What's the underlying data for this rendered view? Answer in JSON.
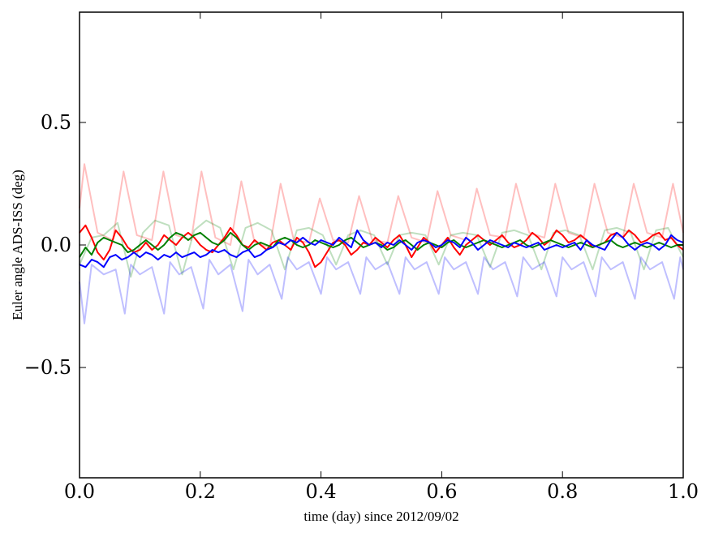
{
  "chart_data": {
    "type": "line",
    "xlabel": "time (day) since 2012/09/02",
    "ylabel": "Euler angle ADS-ISS (deg)",
    "xlim": [
      0.0,
      1.0
    ],
    "ylim": [
      -0.95,
      0.95
    ],
    "grid": false,
    "xticks": [
      0.0,
      0.2,
      0.4,
      0.6,
      0.8,
      1.0
    ],
    "xtick_labels": [
      "0.0",
      "0.2",
      "0.4",
      "0.6",
      "0.8",
      "1.0"
    ],
    "yticks": [
      -0.5,
      0.0,
      0.5
    ],
    "ytick_labels": [
      "−0.5",
      "0.0",
      "0.5"
    ],
    "series": [
      {
        "color": "#ff0000",
        "opacity": 0.25,
        "x": [
          0.0,
          0.008,
          0.03,
          0.055,
          0.073,
          0.095,
          0.12,
          0.139,
          0.16,
          0.185,
          0.202,
          0.225,
          0.25,
          0.268,
          0.29,
          0.315,
          0.333,
          0.355,
          0.38,
          0.398,
          0.42,
          0.445,
          0.463,
          0.485,
          0.51,
          0.528,
          0.55,
          0.575,
          0.593,
          0.615,
          0.64,
          0.658,
          0.68,
          0.705,
          0.723,
          0.745,
          0.77,
          0.788,
          0.81,
          0.835,
          0.853,
          0.875,
          0.9,
          0.918,
          0.94,
          0.965,
          0.983,
          1.0
        ],
        "y": [
          0.15,
          0.33,
          0.05,
          0.02,
          0.3,
          0.04,
          0.02,
          0.3,
          0.04,
          0.02,
          0.3,
          0.03,
          0.0,
          0.26,
          0.01,
          -0.01,
          0.25,
          0.02,
          0.01,
          0.19,
          0.02,
          0.01,
          0.2,
          0.02,
          0.01,
          0.2,
          0.03,
          0.01,
          0.22,
          0.04,
          0.02,
          0.23,
          0.04,
          0.03,
          0.25,
          0.05,
          0.03,
          0.25,
          0.05,
          0.03,
          0.25,
          0.05,
          0.03,
          0.25,
          0.05,
          0.03,
          0.25,
          0.05
        ]
      },
      {
        "color": "#008000",
        "opacity": 0.25,
        "x": [
          0.0,
          0.02,
          0.04,
          0.063,
          0.085,
          0.105,
          0.125,
          0.148,
          0.17,
          0.19,
          0.21,
          0.233,
          0.255,
          0.275,
          0.295,
          0.318,
          0.34,
          0.36,
          0.38,
          0.403,
          0.425,
          0.445,
          0.465,
          0.488,
          0.51,
          0.53,
          0.55,
          0.573,
          0.595,
          0.615,
          0.635,
          0.658,
          0.68,
          0.7,
          0.72,
          0.743,
          0.765,
          0.785,
          0.805,
          0.828,
          0.85,
          0.87,
          0.89,
          0.913,
          0.935,
          0.955,
          0.975,
          1.0
        ],
        "y": [
          -0.08,
          0.03,
          0.04,
          0.09,
          -0.13,
          0.05,
          0.1,
          0.08,
          -0.12,
          0.06,
          0.1,
          0.07,
          -0.1,
          0.07,
          0.09,
          0.06,
          -0.1,
          0.06,
          0.07,
          0.04,
          -0.08,
          0.04,
          0.06,
          0.04,
          -0.08,
          0.04,
          0.05,
          0.04,
          -0.08,
          0.04,
          0.05,
          0.04,
          -0.09,
          0.05,
          0.06,
          0.04,
          -0.1,
          0.05,
          0.06,
          0.04,
          -0.1,
          0.06,
          0.07,
          0.05,
          -0.1,
          0.06,
          0.07,
          -0.05
        ]
      },
      {
        "color": "#0000ff",
        "opacity": 0.25,
        "x": [
          0.0,
          0.008,
          0.02,
          0.04,
          0.06,
          0.075,
          0.085,
          0.1,
          0.12,
          0.14,
          0.15,
          0.165,
          0.185,
          0.205,
          0.215,
          0.23,
          0.25,
          0.27,
          0.28,
          0.295,
          0.315,
          0.335,
          0.345,
          0.36,
          0.38,
          0.4,
          0.41,
          0.425,
          0.445,
          0.465,
          0.475,
          0.49,
          0.51,
          0.53,
          0.54,
          0.555,
          0.575,
          0.595,
          0.605,
          0.62,
          0.64,
          0.66,
          0.67,
          0.685,
          0.705,
          0.725,
          0.735,
          0.75,
          0.77,
          0.79,
          0.8,
          0.815,
          0.835,
          0.855,
          0.865,
          0.88,
          0.9,
          0.92,
          0.93,
          0.945,
          0.965,
          0.985,
          0.995,
          1.0
        ],
        "y": [
          -0.15,
          -0.32,
          -0.08,
          -0.12,
          -0.1,
          -0.28,
          -0.08,
          -0.12,
          -0.09,
          -0.28,
          -0.07,
          -0.12,
          -0.09,
          -0.26,
          -0.06,
          -0.12,
          -0.08,
          -0.27,
          -0.06,
          -0.12,
          -0.08,
          -0.22,
          -0.05,
          -0.1,
          -0.07,
          -0.2,
          -0.05,
          -0.1,
          -0.07,
          -0.2,
          -0.05,
          -0.1,
          -0.07,
          -0.2,
          -0.05,
          -0.1,
          -0.07,
          -0.2,
          -0.05,
          -0.1,
          -0.07,
          -0.2,
          -0.05,
          -0.1,
          -0.07,
          -0.21,
          -0.05,
          -0.1,
          -0.07,
          -0.21,
          -0.05,
          -0.1,
          -0.07,
          -0.21,
          -0.05,
          -0.1,
          -0.07,
          -0.22,
          -0.05,
          -0.1,
          -0.07,
          -0.22,
          -0.05,
          -0.1
        ]
      },
      {
        "color": "#ff0000",
        "opacity": 1,
        "x": [
          0.0,
          0.01,
          0.02,
          0.03,
          0.04,
          0.05,
          0.06,
          0.07,
          0.08,
          0.09,
          0.1,
          0.11,
          0.12,
          0.13,
          0.14,
          0.15,
          0.16,
          0.17,
          0.18,
          0.19,
          0.2,
          0.21,
          0.22,
          0.23,
          0.24,
          0.25,
          0.26,
          0.27,
          0.28,
          0.29,
          0.3,
          0.31,
          0.32,
          0.33,
          0.34,
          0.35,
          0.36,
          0.37,
          0.38,
          0.39,
          0.4,
          0.41,
          0.42,
          0.43,
          0.44,
          0.45,
          0.46,
          0.47,
          0.48,
          0.49,
          0.5,
          0.51,
          0.52,
          0.53,
          0.54,
          0.55,
          0.56,
          0.57,
          0.58,
          0.59,
          0.6,
          0.61,
          0.62,
          0.63,
          0.64,
          0.65,
          0.66,
          0.67,
          0.68,
          0.69,
          0.7,
          0.71,
          0.72,
          0.73,
          0.74,
          0.75,
          0.76,
          0.77,
          0.78,
          0.79,
          0.8,
          0.81,
          0.82,
          0.83,
          0.84,
          0.85,
          0.86,
          0.87,
          0.88,
          0.89,
          0.9,
          0.91,
          0.92,
          0.93,
          0.94,
          0.95,
          0.96,
          0.97,
          0.98,
          0.99,
          1.0
        ],
        "y": [
          0.05,
          0.08,
          0.03,
          -0.03,
          -0.06,
          -0.02,
          0.06,
          0.03,
          -0.01,
          -0.03,
          -0.02,
          0.01,
          -0.02,
          0.0,
          0.04,
          0.02,
          0.0,
          0.03,
          0.05,
          0.03,
          0.0,
          -0.02,
          -0.03,
          0.0,
          0.03,
          0.07,
          0.04,
          0.0,
          -0.01,
          0.02,
          0.0,
          -0.02,
          0.01,
          0.02,
          0.0,
          -0.02,
          0.03,
          0.01,
          -0.03,
          -0.09,
          -0.07,
          -0.03,
          0.01,
          0.02,
          0.0,
          -0.04,
          -0.02,
          0.01,
          0.0,
          0.03,
          0.01,
          -0.01,
          0.02,
          0.04,
          0.0,
          -0.05,
          -0.01,
          0.03,
          0.01,
          -0.03,
          0.0,
          0.03,
          -0.01,
          -0.04,
          0.0,
          0.02,
          0.04,
          0.02,
          0.0,
          0.02,
          0.04,
          0.01,
          -0.01,
          0.0,
          0.02,
          0.05,
          0.03,
          0.0,
          0.02,
          0.06,
          0.04,
          0.01,
          0.02,
          0.04,
          0.02,
          -0.01,
          0.0,
          0.01,
          0.04,
          0.05,
          0.03,
          0.06,
          0.04,
          0.01,
          0.02,
          0.04,
          0.05,
          0.02,
          0.03,
          0.0,
          -0.02
        ]
      },
      {
        "color": "#008000",
        "opacity": 1,
        "x": [
          0.0,
          0.01,
          0.02,
          0.03,
          0.04,
          0.05,
          0.06,
          0.07,
          0.08,
          0.09,
          0.1,
          0.11,
          0.12,
          0.13,
          0.14,
          0.15,
          0.16,
          0.17,
          0.18,
          0.19,
          0.2,
          0.21,
          0.22,
          0.23,
          0.24,
          0.25,
          0.26,
          0.27,
          0.28,
          0.29,
          0.3,
          0.31,
          0.32,
          0.33,
          0.34,
          0.35,
          0.36,
          0.37,
          0.38,
          0.39,
          0.4,
          0.41,
          0.42,
          0.43,
          0.44,
          0.45,
          0.46,
          0.47,
          0.48,
          0.49,
          0.5,
          0.51,
          0.52,
          0.53,
          0.54,
          0.55,
          0.56,
          0.57,
          0.58,
          0.59,
          0.6,
          0.61,
          0.62,
          0.63,
          0.64,
          0.65,
          0.66,
          0.67,
          0.68,
          0.69,
          0.7,
          0.71,
          0.72,
          0.73,
          0.74,
          0.75,
          0.76,
          0.77,
          0.78,
          0.79,
          0.8,
          0.81,
          0.82,
          0.83,
          0.84,
          0.85,
          0.86,
          0.87,
          0.88,
          0.89,
          0.9,
          0.91,
          0.92,
          0.93,
          0.94,
          0.95,
          0.96,
          0.97,
          0.98,
          0.99,
          1.0
        ],
        "y": [
          -0.05,
          -0.01,
          -0.04,
          0.01,
          0.03,
          0.02,
          0.01,
          0.0,
          -0.03,
          -0.02,
          0.0,
          0.02,
          0.0,
          -0.02,
          0.0,
          0.03,
          0.05,
          0.04,
          0.02,
          0.04,
          0.05,
          0.03,
          0.01,
          0.0,
          0.02,
          0.05,
          0.03,
          0.0,
          -0.02,
          0.0,
          0.01,
          0.0,
          -0.01,
          0.02,
          0.03,
          0.02,
          0.0,
          -0.01,
          0.0,
          0.02,
          0.01,
          0.0,
          -0.01,
          0.0,
          0.02,
          0.03,
          0.01,
          -0.01,
          0.0,
          0.01,
          0.0,
          -0.02,
          -0.01,
          0.01,
          0.02,
          0.0,
          -0.02,
          0.0,
          0.01,
          0.0,
          -0.01,
          0.01,
          0.02,
          0.0,
          -0.01,
          0.0,
          0.01,
          0.02,
          0.01,
          0.0,
          -0.01,
          0.0,
          0.01,
          0.02,
          0.0,
          -0.01,
          0.0,
          0.01,
          0.02,
          0.01,
          0.0,
          -0.01,
          0.0,
          0.01,
          0.0,
          -0.01,
          0.0,
          0.01,
          0.02,
          0.0,
          -0.01,
          0.0,
          0.01,
          0.0,
          -0.01,
          0.0,
          0.01,
          0.0,
          -0.01,
          0.0,
          0.0
        ]
      },
      {
        "color": "#0000ff",
        "opacity": 1,
        "x": [
          0.0,
          0.01,
          0.02,
          0.03,
          0.04,
          0.05,
          0.06,
          0.07,
          0.08,
          0.09,
          0.1,
          0.11,
          0.12,
          0.13,
          0.14,
          0.15,
          0.16,
          0.17,
          0.18,
          0.19,
          0.2,
          0.21,
          0.22,
          0.23,
          0.24,
          0.25,
          0.26,
          0.27,
          0.28,
          0.29,
          0.3,
          0.31,
          0.32,
          0.33,
          0.34,
          0.35,
          0.36,
          0.37,
          0.38,
          0.39,
          0.4,
          0.41,
          0.42,
          0.43,
          0.44,
          0.45,
          0.46,
          0.47,
          0.48,
          0.49,
          0.5,
          0.51,
          0.52,
          0.53,
          0.54,
          0.55,
          0.56,
          0.57,
          0.58,
          0.59,
          0.6,
          0.61,
          0.62,
          0.63,
          0.64,
          0.65,
          0.66,
          0.67,
          0.68,
          0.69,
          0.7,
          0.71,
          0.72,
          0.73,
          0.74,
          0.75,
          0.76,
          0.77,
          0.78,
          0.79,
          0.8,
          0.81,
          0.82,
          0.83,
          0.84,
          0.85,
          0.86,
          0.87,
          0.88,
          0.89,
          0.9,
          0.91,
          0.92,
          0.93,
          0.94,
          0.95,
          0.96,
          0.97,
          0.98,
          0.99,
          1.0
        ],
        "y": [
          -0.08,
          -0.09,
          -0.06,
          -0.07,
          -0.09,
          -0.05,
          -0.04,
          -0.06,
          -0.05,
          -0.03,
          -0.05,
          -0.03,
          -0.04,
          -0.06,
          -0.04,
          -0.05,
          -0.03,
          -0.05,
          -0.04,
          -0.03,
          -0.05,
          -0.04,
          -0.02,
          -0.03,
          -0.02,
          -0.04,
          -0.05,
          -0.03,
          -0.02,
          -0.05,
          -0.04,
          -0.02,
          -0.01,
          0.01,
          0.0,
          0.02,
          0.01,
          0.03,
          0.01,
          0.0,
          0.02,
          0.01,
          0.0,
          0.03,
          0.01,
          -0.01,
          0.06,
          0.02,
          0.0,
          0.01,
          -0.01,
          0.01,
          0.0,
          0.02,
          0.0,
          -0.02,
          0.01,
          0.02,
          0.01,
          -0.01,
          0.0,
          0.02,
          0.01,
          -0.01,
          0.03,
          0.01,
          -0.02,
          0.0,
          0.02,
          0.01,
          0.0,
          -0.01,
          0.01,
          0.0,
          -0.01,
          0.0,
          0.01,
          -0.02,
          -0.01,
          0.0,
          -0.01,
          0.0,
          0.01,
          -0.02,
          0.02,
          0.0,
          -0.01,
          -0.02,
          0.02,
          0.05,
          0.03,
          0.0,
          -0.02,
          0.0,
          0.01,
          0.0,
          -0.02,
          0.0,
          0.04,
          0.02,
          0.01
        ]
      }
    ]
  }
}
